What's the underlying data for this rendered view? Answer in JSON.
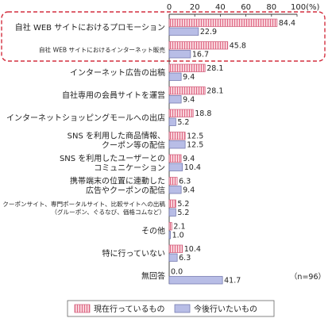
{
  "chart_data": {
    "type": "bar",
    "orientation": "horizontal",
    "categories": [
      [
        "自社 WEB サイトにおけるプロモーション"
      ],
      [
        "自社 WEB サイトにおけるインターネット販売"
      ],
      [
        "インターネット広告の出稿"
      ],
      [
        "自社専用の会員サイトを運営"
      ],
      [
        "インターネットショッピングモールへの出店"
      ],
      [
        "SNS を利用した商品情報、",
        "クーポン等の配信"
      ],
      [
        "SNS を利用したユーザーとの",
        "コミュニケーション"
      ],
      [
        "携帯端末の位置に連動した",
        "広告やクーポンの配信"
      ],
      [
        "クーポンサイト、専門ポータルサイト、比較サイトへの出稿",
        "（グルーポン、ぐるなび、価格コムなど）"
      ],
      [
        "その他"
      ],
      [
        "特に行っていない"
      ],
      [
        "無回答"
      ]
    ],
    "series": [
      {
        "name": "現在行っているもの",
        "values": [
          84.4,
          45.8,
          28.1,
          28.1,
          18.8,
          12.5,
          9.4,
          6.3,
          5.2,
          2.1,
          10.4,
          0.0
        ],
        "labels": [
          "84.4",
          "45.8",
          "28.1",
          "28.1",
          "18.8",
          "12.5",
          "9.4",
          "6.3",
          "5.2",
          "2.1",
          "10.4",
          "0.0"
        ],
        "color": "#f4b6c2",
        "stroke": "#d05a78"
      },
      {
        "name": "今後行いたいもの",
        "values": [
          22.9,
          16.7,
          9.4,
          9.4,
          5.2,
          12.5,
          10.4,
          9.4,
          5.2,
          1.0,
          6.3,
          41.7
        ],
        "labels": [
          "22.9",
          "16.7",
          "9.4",
          "9.4",
          "5.2",
          "12.5",
          "10.4",
          "9.4",
          "5.2",
          "1.0",
          "6.3",
          "41.7"
        ],
        "color": "#b8bde6",
        "stroke": "#6b70a8"
      }
    ],
    "xlim": [
      0,
      100
    ],
    "xticks": [
      "0",
      "20",
      "40",
      "60",
      "80",
      "100(%)"
    ],
    "note": "（n=96）",
    "highlight": [
      0,
      1
    ],
    "highlight_color": "#d32f3f"
  }
}
